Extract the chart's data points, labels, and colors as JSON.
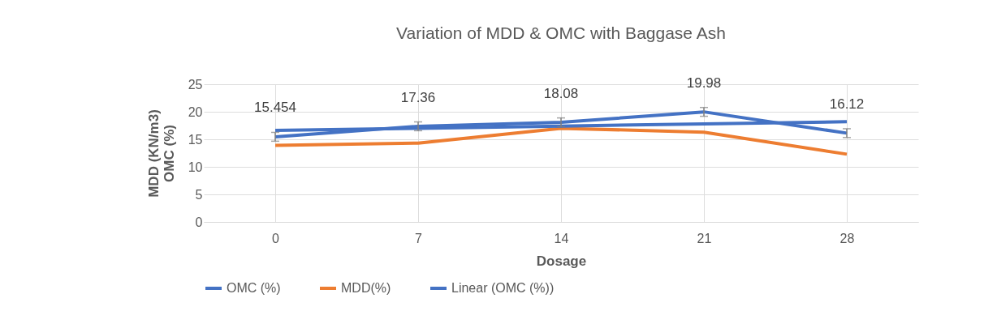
{
  "chart_data": {
    "type": "line",
    "title": "Variation of MDD & OMC with Baggase Ash",
    "xlabel": "Dosage",
    "ylabel": "MDD (KN/m3)\nOMC (%)",
    "categories": [
      "0",
      "7",
      "14",
      "21",
      "28"
    ],
    "series": [
      {
        "name": "OMC (%)",
        "color": "#4472c4",
        "values": [
          15.454,
          17.36,
          18.08,
          19.98,
          16.12
        ],
        "errors": [
          0.8,
          0.8,
          0.8,
          0.8,
          0.8
        ],
        "value_labels": [
          "15.454",
          "17.36",
          "18.08",
          "19.98",
          "16.12"
        ]
      },
      {
        "name": "MDD(%)",
        "color": "#ed7d31",
        "values": [
          13.9,
          14.3,
          17.0,
          16.3,
          12.3
        ]
      },
      {
        "name": "Linear (OMC (%))",
        "color": "#4472c4",
        "x": [
          "0",
          "7",
          "14",
          "21",
          "28"
        ],
        "values": [
          16.6,
          17.0,
          17.4,
          17.8,
          18.2
        ]
      }
    ],
    "ylim": [
      0,
      25
    ],
    "yticks": [
      0,
      5,
      10,
      15,
      20,
      25
    ],
    "grid": true,
    "legend": "bottom"
  }
}
